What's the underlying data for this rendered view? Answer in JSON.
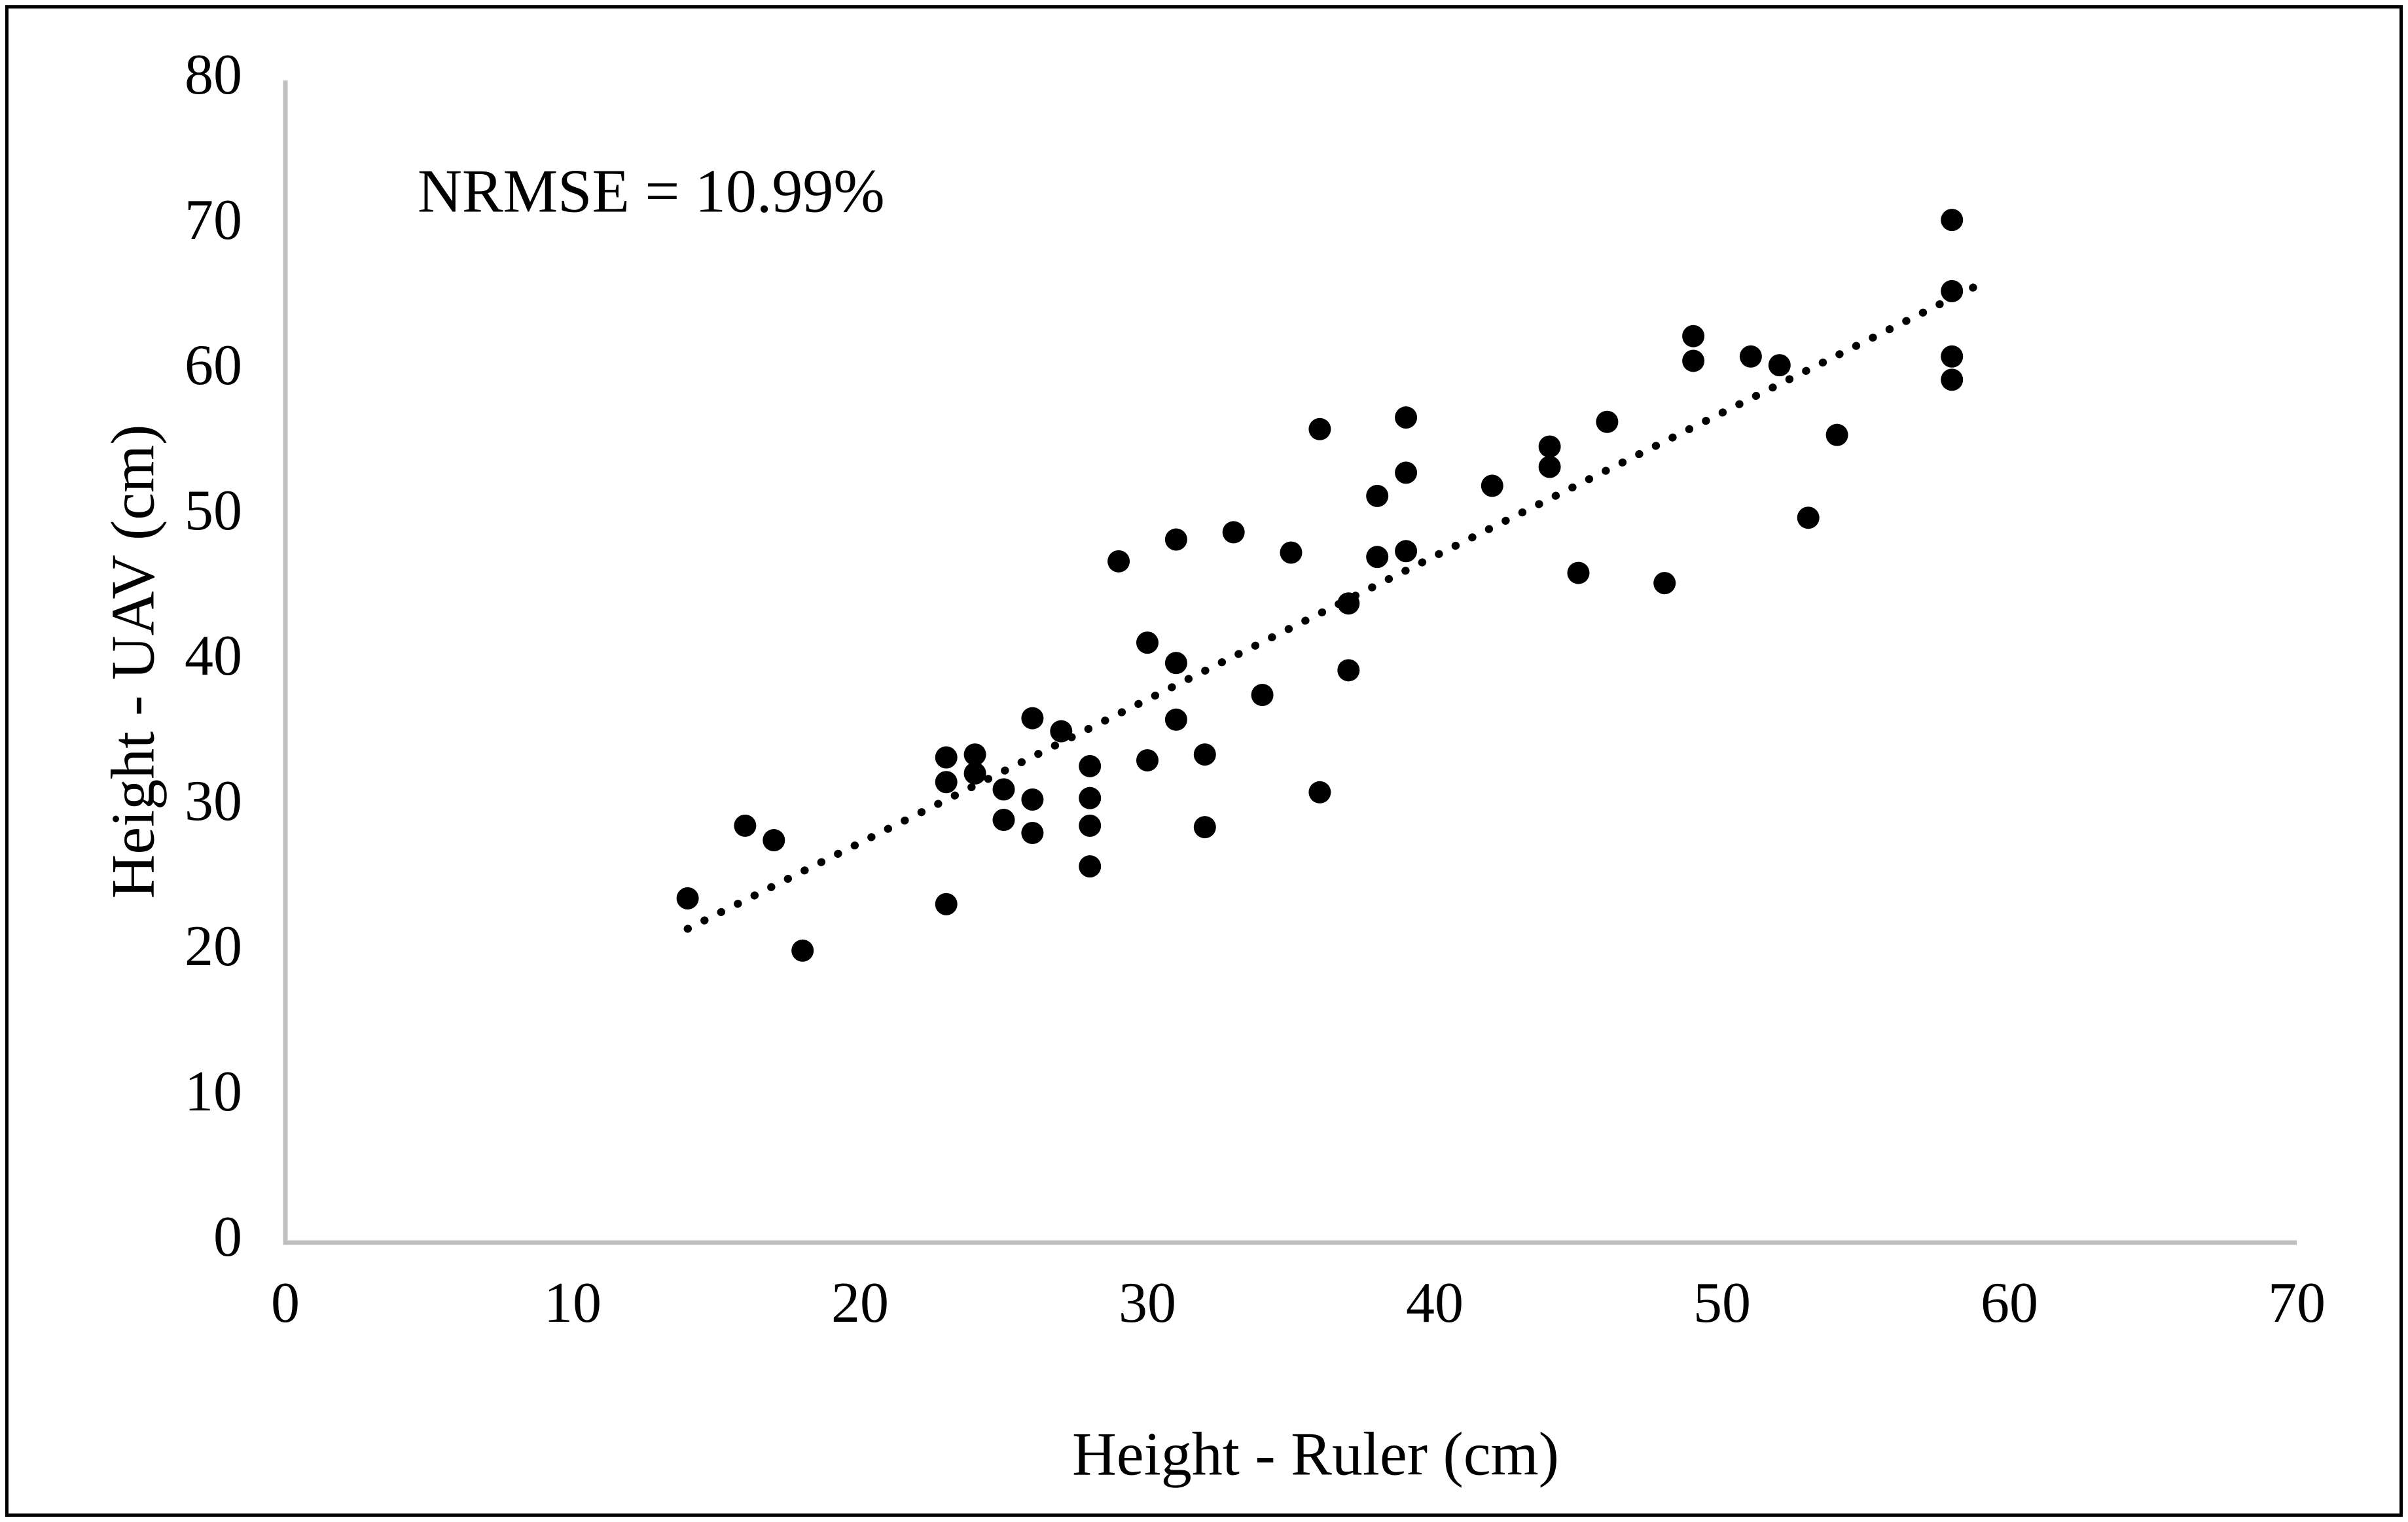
{
  "chart_data": {
    "type": "scatter",
    "annotation": "NRMSE = 10.99%",
    "xlabel": "Height - Ruler (cm)",
    "ylabel": "Height - UAV (cm)",
    "xlim": [
      0,
      70
    ],
    "ylim": [
      0,
      80
    ],
    "xticks": [
      0,
      10,
      20,
      30,
      40,
      50,
      60,
      70
    ],
    "yticks": [
      0,
      10,
      20,
      30,
      40,
      50,
      60,
      70,
      80
    ],
    "grid": false,
    "legend": "none",
    "axis_color": "#BFBFBF",
    "marker_color": "#000000",
    "marker_diameter_px": 34,
    "points": [
      [
        14,
        23.7
      ],
      [
        16,
        28.7
      ],
      [
        17,
        27.7
      ],
      [
        18,
        20.1
      ],
      [
        23,
        23.3
      ],
      [
        23,
        33.4
      ],
      [
        23,
        31.7
      ],
      [
        24,
        33.6
      ],
      [
        24,
        32.3
      ],
      [
        25,
        31.2
      ],
      [
        25,
        29.1
      ],
      [
        26,
        36.1
      ],
      [
        26,
        30.5
      ],
      [
        26,
        28.2
      ],
      [
        27,
        35.2
      ],
      [
        28,
        32.8
      ],
      [
        28,
        30.6
      ],
      [
        28,
        28.7
      ],
      [
        28,
        25.9
      ],
      [
        29,
        46.9
      ],
      [
        30,
        41.3
      ],
      [
        30,
        33.2
      ],
      [
        31,
        48.4
      ],
      [
        31,
        39.9
      ],
      [
        31,
        36.0
      ],
      [
        32,
        33.6
      ],
      [
        32,
        28.6
      ],
      [
        33,
        48.9
      ],
      [
        34,
        37.7
      ],
      [
        35,
        47.5
      ],
      [
        36,
        56.0
      ],
      [
        36,
        31.0
      ],
      [
        37,
        44.0
      ],
      [
        37,
        39.4
      ],
      [
        38,
        51.4
      ],
      [
        38,
        47.2
      ],
      [
        39,
        56.8
      ],
      [
        39,
        53.0
      ],
      [
        39,
        47.6
      ],
      [
        42,
        52.1
      ],
      [
        44,
        54.8
      ],
      [
        44,
        53.4
      ],
      [
        45,
        46.1
      ],
      [
        46,
        56.5
      ],
      [
        48,
        45.4
      ],
      [
        49,
        62.4
      ],
      [
        49,
        60.7
      ],
      [
        51,
        61.0
      ],
      [
        52,
        60.4
      ],
      [
        53,
        49.9
      ],
      [
        54,
        55.6
      ],
      [
        58,
        70.4
      ],
      [
        58,
        65.5
      ],
      [
        58,
        61.0
      ],
      [
        58,
        59.4
      ]
    ],
    "trendline": {
      "style": "dotted",
      "color": "#000000",
      "x1": 14,
      "y1": 21.6,
      "x2": 59.2,
      "y2": 66.2
    }
  }
}
